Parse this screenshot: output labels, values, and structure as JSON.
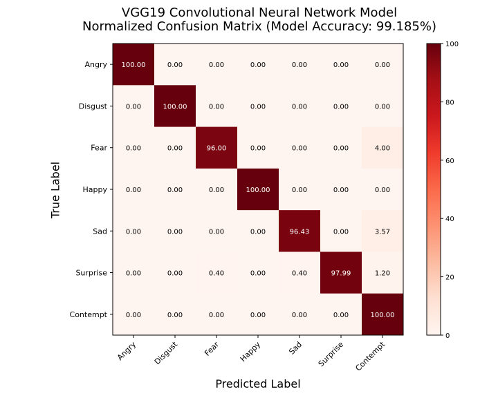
{
  "chart_data": {
    "type": "heatmap",
    "title": [
      "VGG19 Convolutional Neural Network Model",
      "Normalized Confusion Matrix (Model Accuracy: 99.185%)"
    ],
    "xlabel": "Predicted Label",
    "ylabel": "True Label",
    "x_categories": [
      "Angry",
      "Disgust",
      "Fear",
      "Happy",
      "Sad",
      "Surprise",
      "Contempt"
    ],
    "y_categories": [
      "Angry",
      "Disgust",
      "Fear",
      "Happy",
      "Sad",
      "Surprise",
      "Contempt"
    ],
    "values": [
      [
        100.0,
        0.0,
        0.0,
        0.0,
        0.0,
        0.0,
        0.0
      ],
      [
        0.0,
        100.0,
        0.0,
        0.0,
        0.0,
        0.0,
        0.0
      ],
      [
        0.0,
        0.0,
        96.0,
        0.0,
        0.0,
        0.0,
        4.0
      ],
      [
        0.0,
        0.0,
        0.0,
        100.0,
        0.0,
        0.0,
        0.0
      ],
      [
        0.0,
        0.0,
        0.0,
        0.0,
        96.43,
        0.0,
        3.57
      ],
      [
        0.0,
        0.0,
        0.4,
        0.0,
        0.4,
        97.99,
        1.2
      ],
      [
        0.0,
        0.0,
        0.0,
        0.0,
        0.0,
        0.0,
        100.0
      ]
    ],
    "value_format": "2 decimals",
    "colormap": "Reds",
    "vmin": 0,
    "vmax": 100,
    "colorbar_ticks": [
      0,
      20,
      40,
      60,
      80,
      100
    ],
    "colors": {
      "low": "#fff5f0",
      "high": "#67000d",
      "text_dark": "#000000",
      "text_light": "#ffffff"
    }
  }
}
